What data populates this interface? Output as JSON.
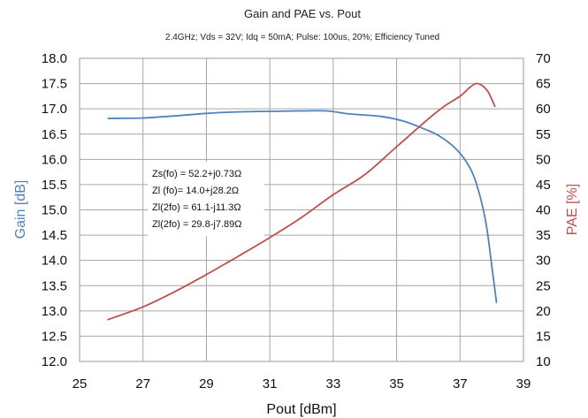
{
  "chart_data": {
    "type": "line",
    "title": "Gain and PAE vs. Pout",
    "subtitle": "2.4GHz; Vds = 32V; Idq = 50mA; Pulse: 100us, 20%; Efficiency Tuned",
    "xlabel": "Pout [dBm]",
    "ylabel_left": "Gain [dB]",
    "ylabel_right": "PAE [%]",
    "xlim": [
      25,
      39
    ],
    "ylim_left": [
      12.0,
      18.0
    ],
    "ylim_right": [
      10,
      70
    ],
    "x_ticks": [
      "25",
      "27",
      "29",
      "31",
      "33",
      "35",
      "37",
      "39"
    ],
    "y_ticks_left": [
      "12.0",
      "12.5",
      "13.0",
      "13.5",
      "14.0",
      "14.5",
      "15.0",
      "15.5",
      "16.0",
      "16.5",
      "17.0",
      "17.5",
      "18.0"
    ],
    "y_ticks_right": [
      "10",
      "15",
      "20",
      "25",
      "30",
      "35",
      "40",
      "45",
      "50",
      "55",
      "60",
      "65",
      "70"
    ],
    "grid": true,
    "annotations": [
      "Zs(fo) = 52.2+j0.73Ω",
      "Zl (fo)= 14.0+j28.2Ω",
      "Zl(2fo) = 61.1-j11.3Ω",
      "Zl(2fo) = 29.8-j7.89Ω"
    ],
    "series": [
      {
        "axis": "left",
        "color": "#4f81bd",
        "x": [
          25.9,
          27.0,
          28.0,
          29.0,
          30.0,
          31.0,
          32.0,
          32.8,
          33.5,
          34.5,
          35.2,
          35.8,
          36.3,
          36.8,
          37.2,
          37.5,
          37.8,
          38.0,
          38.15
        ],
        "values": [
          16.81,
          16.82,
          16.86,
          16.91,
          16.94,
          16.95,
          16.96,
          16.96,
          16.9,
          16.85,
          16.76,
          16.62,
          16.48,
          16.25,
          15.95,
          15.55,
          14.8,
          13.9,
          13.17
        ]
      },
      {
        "axis": "right",
        "color": "#c0504d",
        "x": [
          25.9,
          27.0,
          28.0,
          29.0,
          30.0,
          31.0,
          32.0,
          33.0,
          34.0,
          35.0,
          36.0,
          36.5,
          37.0,
          37.3,
          37.5,
          37.7,
          37.9,
          38.1
        ],
        "values": [
          18.3,
          20.8,
          23.8,
          27.2,
          30.8,
          34.5,
          38.5,
          43.0,
          47.0,
          52.5,
          58.0,
          60.5,
          62.5,
          64.2,
          65.0,
          64.6,
          63.2,
          60.5
        ]
      }
    ]
  }
}
